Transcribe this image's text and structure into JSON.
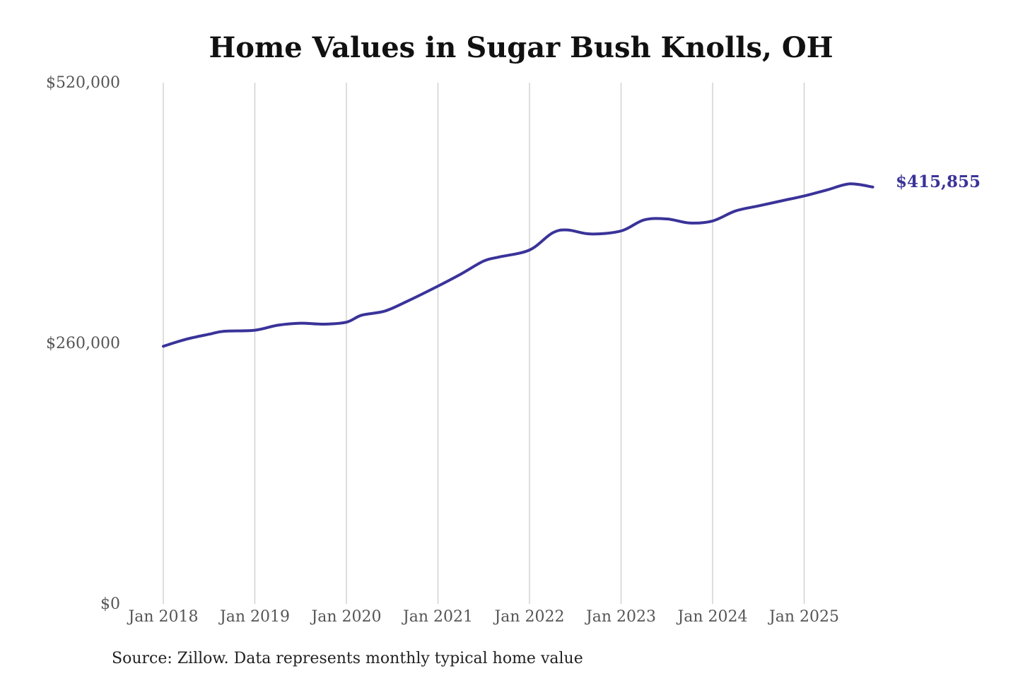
{
  "chart_data": {
    "type": "line",
    "title": "Home Values in Sugar Bush Knolls, OH",
    "xlabel": "",
    "ylabel": "",
    "ylim": [
      0,
      520000
    ],
    "y_ticks": [
      {
        "value": 0,
        "label": "$0"
      },
      {
        "value": 260000,
        "label": "$260,000"
      },
      {
        "value": 520000,
        "label": "$520,000"
      }
    ],
    "x_ticks": [
      {
        "value": "2018-01",
        "label": "Jan 2018"
      },
      {
        "value": "2019-01",
        "label": "Jan 2019"
      },
      {
        "value": "2020-01",
        "label": "Jan 2020"
      },
      {
        "value": "2021-01",
        "label": "Jan 2021"
      },
      {
        "value": "2022-01",
        "label": "Jan 2022"
      },
      {
        "value": "2023-01",
        "label": "Jan 2023"
      },
      {
        "value": "2024-01",
        "label": "Jan 2024"
      },
      {
        "value": "2025-01",
        "label": "Jan 2025"
      }
    ],
    "xlim": [
      "2018-01",
      "2025-10"
    ],
    "grid": "vertical",
    "series": [
      {
        "color": "#3a3399",
        "x": [
          "2018-01",
          "2018-04",
          "2018-07",
          "2018-09",
          "2019-01",
          "2019-04",
          "2019-07",
          "2019-10",
          "2020-01",
          "2020-03",
          "2020-06",
          "2020-09",
          "2021-01",
          "2021-04",
          "2021-07",
          "2021-09",
          "2022-01",
          "2022-04",
          "2022-06",
          "2022-09",
          "2023-01",
          "2023-04",
          "2023-07",
          "2023-10",
          "2024-01",
          "2024-04",
          "2024-07",
          "2024-10",
          "2025-01",
          "2025-04",
          "2025-07",
          "2025-10"
        ],
        "y": [
          257000,
          264000,
          269000,
          272000,
          273000,
          278000,
          280000,
          279000,
          281000,
          288000,
          292000,
          302000,
          317000,
          329000,
          342000,
          346000,
          353000,
          370000,
          373000,
          369000,
          372000,
          383000,
          384000,
          380000,
          382000,
          392000,
          397000,
          402000,
          407000,
          413000,
          419000,
          415855
        ]
      }
    ],
    "annotations": [
      {
        "x": "2025-10",
        "y": 415855,
        "text": "$415,855"
      }
    ]
  },
  "source_note": "Source: Zillow. Data represents monthly typical home value"
}
